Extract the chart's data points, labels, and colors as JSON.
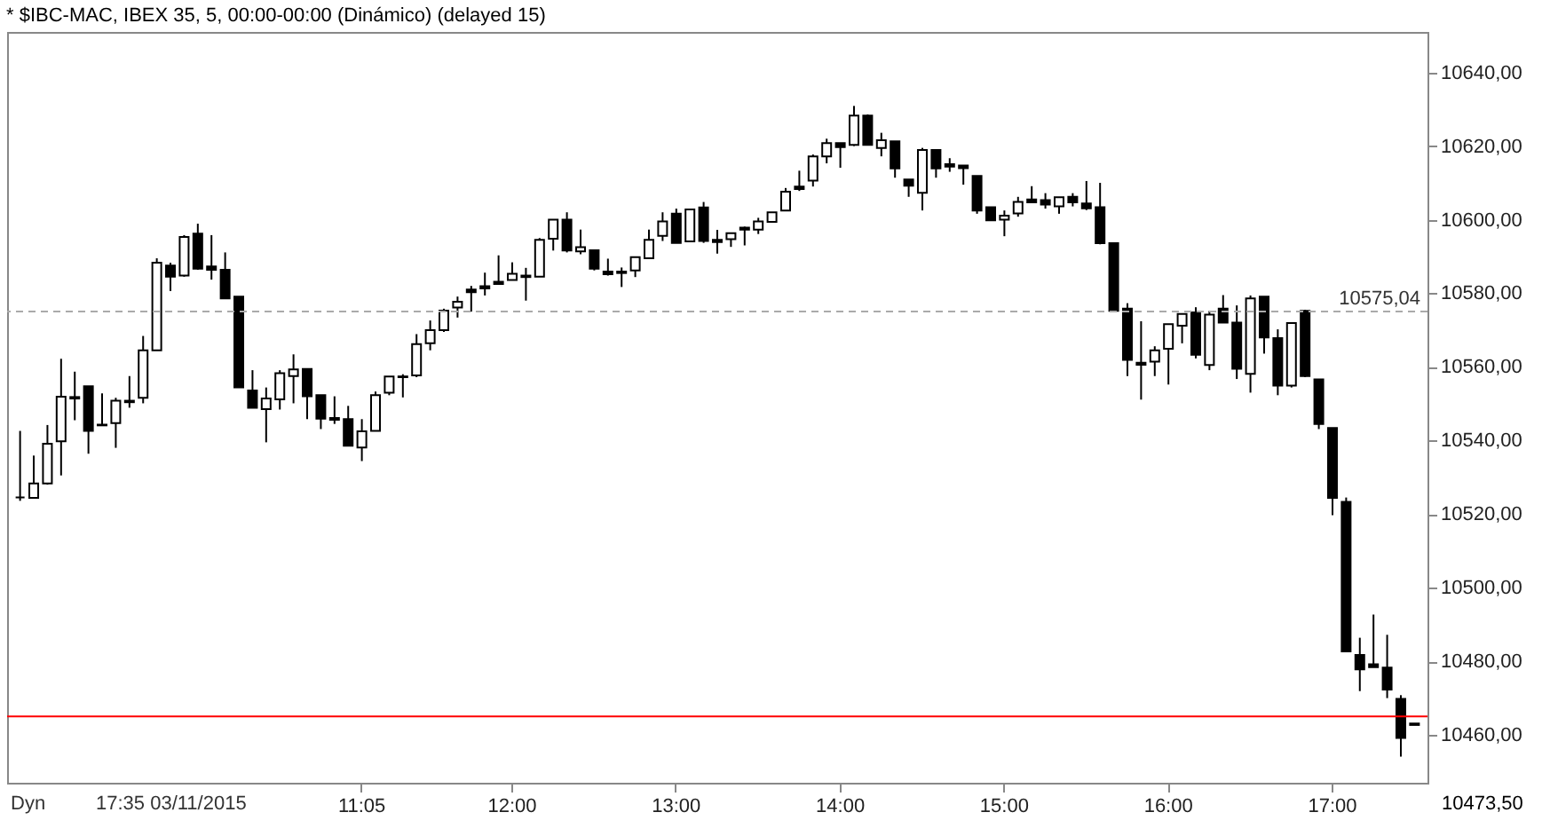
{
  "chart_data": {
    "type": "candlestick",
    "title": "* $IBC-MAC, IBEX 35, 5, 00:00-00:00 (Dinámico) (delayed 15)",
    "categories": [
      null,
      null,
      null,
      null,
      null,
      null,
      null,
      null,
      null,
      null,
      null,
      null,
      null,
      null,
      null,
      null,
      null,
      null,
      null,
      null,
      null,
      null,
      null,
      null,
      null,
      "11:05",
      null,
      null,
      null,
      null,
      null,
      null,
      null,
      null,
      null,
      null,
      "12:00",
      null,
      null,
      null,
      null,
      null,
      null,
      null,
      null,
      null,
      null,
      null,
      "13:00",
      null,
      null,
      null,
      null,
      null,
      null,
      null,
      null,
      null,
      null,
      null,
      "14:00",
      null,
      null,
      null,
      null,
      null,
      null,
      null,
      null,
      null,
      null,
      null,
      "15:00",
      null,
      null,
      null,
      null,
      null,
      null,
      null,
      null,
      null,
      null,
      null,
      "16:00",
      null,
      null,
      null,
      null,
      null,
      null,
      null,
      null,
      null,
      null,
      null,
      "17:00",
      null,
      null,
      null,
      null,
      null,
      null
    ],
    "ohlc": [
      [
        10524.5,
        10542.6,
        10523.6,
        10524.5
      ],
      [
        10524.4,
        10535.9,
        10524.4,
        10528.3
      ],
      [
        10528.3,
        10544.2,
        10528.0,
        10539.1
      ],
      [
        10539.8,
        10562.2,
        10530.5,
        10551.9
      ],
      [
        10551.8,
        10558.7,
        10545.5,
        10551.4
      ],
      [
        10554.7,
        10554.7,
        10536.4,
        10542.6
      ],
      [
        10544.3,
        10552.8,
        10544.1,
        10544.1
      ],
      [
        10544.7,
        10551.6,
        10538.0,
        10550.8
      ],
      [
        10550.8,
        10557.5,
        10548.9,
        10550.4
      ],
      [
        10551.6,
        10568.4,
        10550.1,
        10564.5
      ],
      [
        10564.5,
        10589.5,
        10564.5,
        10588.3
      ],
      [
        10587.5,
        10588.3,
        10580.6,
        10584.5
      ],
      [
        10584.8,
        10595.8,
        10584.5,
        10595.3
      ],
      [
        10596.2,
        10598.9,
        10586.4,
        10586.7
      ],
      [
        10587.3,
        10595.8,
        10583.7,
        10586.4
      ],
      [
        10586.4,
        10591.1,
        10578.6,
        10578.6
      ],
      [
        10579.1,
        10579.1,
        10554.4,
        10554.4
      ],
      [
        10553.6,
        10559.1,
        10548.9,
        10548.9
      ],
      [
        10548.5,
        10554.4,
        10539.5,
        10551.4
      ],
      [
        10551.2,
        10559.1,
        10548.4,
        10558.3
      ],
      [
        10557.5,
        10563.4,
        10550.1,
        10559.3
      ],
      [
        10559.4,
        10559.4,
        10545.8,
        10552.0
      ],
      [
        10552.3,
        10552.3,
        10543.1,
        10545.9
      ],
      [
        10546.1,
        10552.0,
        10544.5,
        10545.6
      ],
      [
        10545.8,
        10549.4,
        10538.6,
        10538.6
      ],
      [
        10538.1,
        10545.8,
        10534.4,
        10542.5
      ],
      [
        10542.6,
        10553.3,
        10542.6,
        10552.3
      ],
      [
        10553.0,
        10557.4,
        10552.3,
        10557.4
      ],
      [
        10557.4,
        10558.0,
        10551.7,
        10557.2
      ],
      [
        10557.7,
        10568.9,
        10557.2,
        10566.2
      ],
      [
        10566.4,
        10572.6,
        10564.5,
        10570.0
      ],
      [
        10570.0,
        10575.8,
        10569.5,
        10575.3
      ],
      [
        10576.1,
        10579.1,
        10573.4,
        10577.7
      ],
      [
        10581.0,
        10582.0,
        10575.0,
        10580.3
      ],
      [
        10581.9,
        10585.6,
        10579.4,
        10581.3
      ],
      [
        10583.1,
        10590.3,
        10582.5,
        10582.5
      ],
      [
        10583.6,
        10588.4,
        10583.6,
        10585.3
      ],
      [
        10584.8,
        10586.9,
        10578.0,
        10584.4
      ],
      [
        10584.5,
        10595.0,
        10584.5,
        10594.5
      ],
      [
        10594.8,
        10600.0,
        10591.6,
        10600.0
      ],
      [
        10600.0,
        10602.0,
        10591.1,
        10591.6
      ],
      [
        10591.4,
        10597.3,
        10590.6,
        10592.5
      ],
      [
        10591.7,
        10591.7,
        10586.2,
        10586.7
      ],
      [
        10585.9,
        10589.4,
        10584.8,
        10585.2
      ],
      [
        10585.9,
        10587.0,
        10581.7,
        10585.5
      ],
      [
        10586.2,
        10589.8,
        10584.4,
        10589.8
      ],
      [
        10589.5,
        10597.3,
        10589.5,
        10594.5
      ],
      [
        10595.6,
        10602.0,
        10594.2,
        10599.5
      ],
      [
        10601.6,
        10603.0,
        10593.7,
        10593.7
      ],
      [
        10594.1,
        10602.8,
        10594.1,
        10602.8
      ],
      [
        10603.3,
        10604.8,
        10593.7,
        10594.2
      ],
      [
        10594.5,
        10597.2,
        10590.8,
        10593.9
      ],
      [
        10594.7,
        10596.3,
        10592.6,
        10596.3
      ],
      [
        10597.8,
        10598.1,
        10593.0,
        10597.3
      ],
      [
        10597.3,
        10600.5,
        10596.1,
        10599.5
      ],
      [
        10599.4,
        10602.0,
        10599.4,
        10602.0
      ],
      [
        10602.5,
        10608.6,
        10602.5,
        10607.6
      ],
      [
        10609.0,
        10613.3,
        10607.8,
        10608.3
      ],
      [
        10610.6,
        10617.7,
        10609.0,
        10617.2
      ],
      [
        10617.2,
        10622.0,
        10615.3,
        10620.8
      ],
      [
        10620.8,
        10620.8,
        10614.1,
        10619.7
      ],
      [
        10620.3,
        10630.9,
        10620.0,
        10628.3
      ],
      [
        10628.3,
        10628.6,
        10620.3,
        10620.3
      ],
      [
        10619.5,
        10623.6,
        10617.2,
        10621.6
      ],
      [
        10621.3,
        10621.3,
        10611.4,
        10613.9
      ],
      [
        10610.9,
        10610.9,
        10606.2,
        10609.2
      ],
      [
        10607.3,
        10619.5,
        10602.5,
        10618.9
      ],
      [
        10618.9,
        10618.9,
        10611.4,
        10613.9
      ],
      [
        10615.1,
        10616.7,
        10613.0,
        10614.4
      ],
      [
        10614.7,
        10614.7,
        10609.5,
        10614.0
      ],
      [
        10611.9,
        10611.9,
        10601.6,
        10602.5
      ],
      [
        10603.4,
        10603.4,
        10599.8,
        10599.8
      ],
      [
        10600.0,
        10602.5,
        10595.5,
        10601.1
      ],
      [
        10601.7,
        10606.2,
        10600.8,
        10604.8
      ],
      [
        10605.5,
        10609.1,
        10604.7,
        10604.7
      ],
      [
        10605.3,
        10607.2,
        10603.0,
        10604.1
      ],
      [
        10603.6,
        10606.1,
        10601.6,
        10606.1
      ],
      [
        10606.2,
        10607.2,
        10603.6,
        10604.7
      ],
      [
        10604.4,
        10610.5,
        10602.6,
        10603.1
      ],
      [
        10603.4,
        10610.0,
        10593.3,
        10593.6
      ],
      [
        10593.6,
        10593.6,
        10574.8,
        10575.2
      ],
      [
        10575.8,
        10577.3,
        10557.5,
        10561.9
      ],
      [
        10561.1,
        10572.4,
        10551.1,
        10560.6
      ],
      [
        10561.4,
        10565.6,
        10557.5,
        10564.5
      ],
      [
        10564.9,
        10571.6,
        10555.2,
        10571.6
      ],
      [
        10571.2,
        10574.4,
        10566.4,
        10574.4
      ],
      [
        10574.8,
        10576.2,
        10562.3,
        10563.3
      ],
      [
        10560.5,
        10575.2,
        10559.1,
        10574.2
      ],
      [
        10575.8,
        10579.5,
        10572.0,
        10572.0
      ],
      [
        10572.0,
        10576.7,
        10556.7,
        10559.5
      ],
      [
        10558.1,
        10579.4,
        10553.0,
        10578.6
      ],
      [
        10579.1,
        10579.1,
        10563.6,
        10568.0
      ],
      [
        10567.8,
        10570.2,
        10552.3,
        10554.9
      ],
      [
        10554.9,
        10571.9,
        10554.4,
        10571.9
      ],
      [
        10575.2,
        10575.5,
        10557.2,
        10557.5
      ],
      [
        10556.6,
        10556.6,
        10543.1,
        10544.5
      ],
      [
        10543.4,
        10543.4,
        10519.7,
        10524.4
      ],
      [
        10523.3,
        10524.5,
        10482.7,
        10482.7
      ],
      [
        10481.7,
        10486.4,
        10471.9,
        10477.8
      ],
      [
        10479.2,
        10492.7,
        10478.4,
        10478.4
      ],
      [
        10478.3,
        10487.2,
        10470.0,
        10472.3
      ],
      [
        10469.8,
        10470.8,
        10454.1,
        10459.2
      ],
      [
        10463.1,
        10463.1,
        10462.7,
        10462.7
      ]
    ],
    "ylim": [
      10447,
      10651
    ],
    "yticks": [
      {
        "value": 10460,
        "label": "10460,00"
      },
      {
        "value": 10480,
        "label": "10480,00"
      },
      {
        "value": 10500,
        "label": "10500,00"
      },
      {
        "value": 10520,
        "label": "10520,00"
      },
      {
        "value": 10540,
        "label": "10540,00"
      },
      {
        "value": 10560,
        "label": "10560,00"
      },
      {
        "value": 10580,
        "label": "10580,00"
      },
      {
        "value": 10600,
        "label": "10600,00"
      },
      {
        "value": 10620,
        "label": "10620,00"
      },
      {
        "value": 10640,
        "label": "10640,00"
      }
    ],
    "ref_lines": [
      {
        "axis": "y",
        "value": 10575.04,
        "label": "10575,04",
        "color": "#aaaaaa",
        "line_style": "dashed"
      },
      {
        "axis": "y",
        "value": 10465,
        "color": "#ff0000",
        "line_style": "solid"
      }
    ],
    "annotations": [
      "Dyn",
      "17:35 03/11/2015",
      "10473,50"
    ]
  }
}
